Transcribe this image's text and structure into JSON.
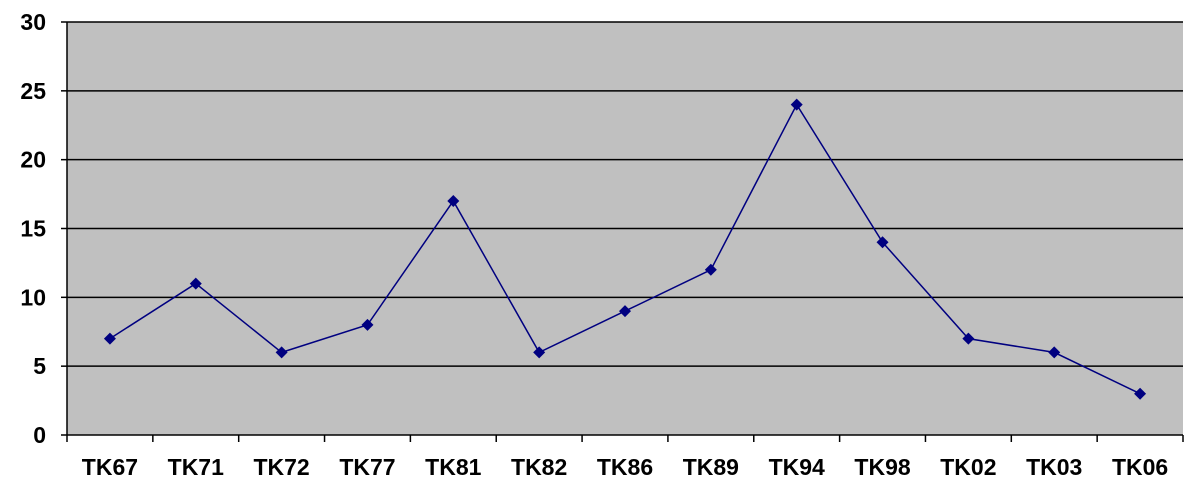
{
  "chart_data": {
    "type": "line",
    "title": "",
    "xlabel": "",
    "ylabel": "",
    "categories": [
      "TK67",
      "TK71",
      "TK72",
      "TK77",
      "TK81",
      "TK82",
      "TK86",
      "TK89",
      "TK94",
      "TK98",
      "TK02",
      "TK03",
      "TK06"
    ],
    "series": [
      {
        "values": [
          7,
          11,
          6,
          8,
          17,
          6,
          9,
          12,
          24,
          14,
          7,
          6,
          3
        ],
        "color": "#000080"
      }
    ],
    "ylim": [
      0,
      30
    ],
    "yticks": [
      0,
      5,
      10,
      15,
      20,
      25,
      30
    ],
    "grid": true,
    "legend": "none",
    "plot_background": "#c0c0c0",
    "gridline_color": "#000000",
    "marker": "diamond"
  }
}
